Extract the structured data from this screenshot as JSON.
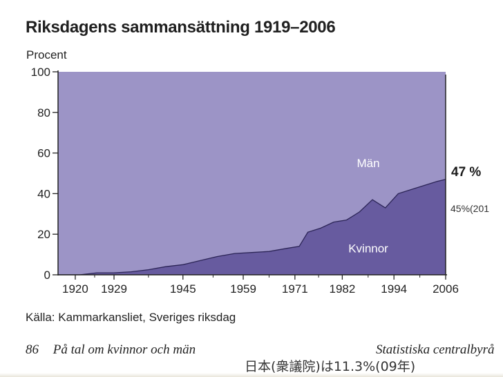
{
  "title": "Riksdagens sammansättning 1919–2006",
  "source": "Källa: Kammarkansliet, Sveriges riksdag",
  "footer": {
    "page_number": "86",
    "book_title": "På tal om kvinnor och män",
    "publisher": "Statistiska centralbyrå"
  },
  "annotation_note": "日本(衆議院)は11.3%(09年)",
  "side_note": "45%(201",
  "chart_data": {
    "type": "area",
    "ylabel": "Procent",
    "ylim": [
      0,
      100
    ],
    "yticks": [
      0,
      20,
      40,
      60,
      80,
      100
    ],
    "xlim": [
      1916,
      2006
    ],
    "xticks": [
      1920,
      1929,
      1945,
      1959,
      1971,
      1982,
      1994,
      2006
    ],
    "grid": false,
    "series": [
      {
        "name": "Kvinnor",
        "color": "#675b9f",
        "x": [
          1916,
          1921,
          1925,
          1929,
          1933,
          1937,
          1941,
          1945,
          1949,
          1953,
          1957,
          1961,
          1965,
          1969,
          1972,
          1974,
          1977,
          1980,
          1983,
          1986,
          1989,
          1992,
          1995,
          1998,
          2001,
          2004,
          2006
        ],
        "y": [
          0,
          0,
          1,
          1,
          1.5,
          2.5,
          4,
          5,
          7,
          9,
          10.5,
          11,
          11.5,
          13,
          14,
          21,
          23,
          26,
          27,
          31,
          37,
          33,
          40,
          42,
          44,
          46,
          47
        ]
      },
      {
        "name": "Män",
        "color": "#9c94c6",
        "fill_to": 100
      }
    ],
    "annotations": [
      {
        "text": "Män",
        "x": 1989,
        "y": 53
      },
      {
        "text": "Kvinnor",
        "x": 1989,
        "y": 11
      },
      {
        "text": "47 %",
        "x": 2006,
        "y": 47,
        "bold": true
      }
    ]
  }
}
